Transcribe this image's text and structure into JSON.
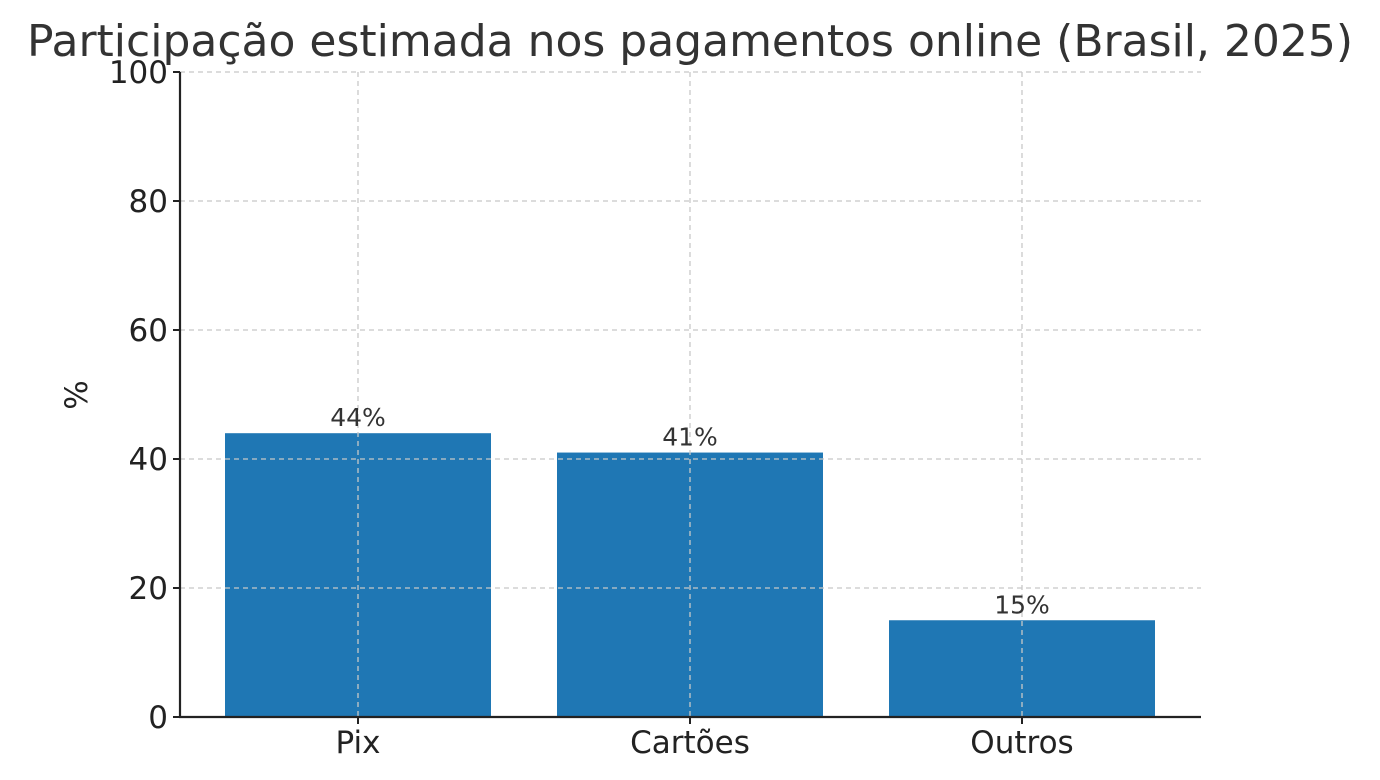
{
  "chart_data": {
    "type": "bar",
    "title": "Participação estimada nos pagamentos online (Brasil, 2025)",
    "xlabel": "",
    "ylabel": "%",
    "categories": [
      "Pix",
      "Cartões",
      "Outros"
    ],
    "values": [
      44,
      41,
      15
    ],
    "data_labels": [
      "44%",
      "41%",
      "15%"
    ],
    "ylim": [
      0,
      100
    ],
    "yticks": [
      0,
      20,
      40,
      60,
      80,
      100
    ],
    "grid": true,
    "bar_color": "#1f77b4"
  }
}
